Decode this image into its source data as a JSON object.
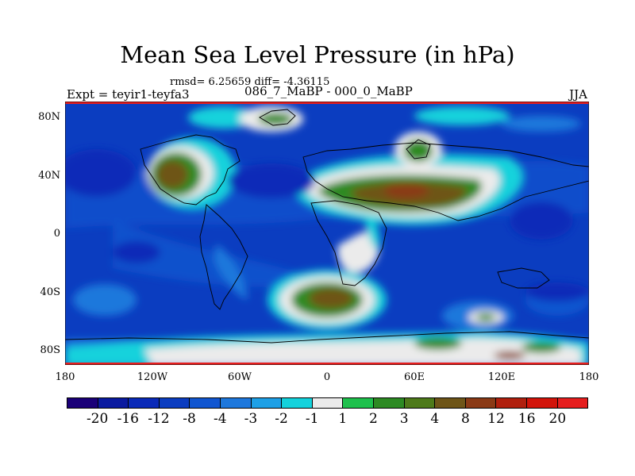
{
  "title": "Mean Sea Level Pressure (in hPa)",
  "stats": "rmsd= 6.25659 diff= -4.36115",
  "experiment": "Expt = teyir1-teyfa3",
  "case_diff": "086_7_MaBP - 000_0_MaBP",
  "season": "JJA",
  "y_axis": {
    "labels": [
      "80N",
      "40N",
      "0",
      "40S",
      "80S"
    ],
    "values": [
      80,
      40,
      0,
      -40,
      -80
    ]
  },
  "x_axis": {
    "labels": [
      "180",
      "120W",
      "60W",
      "0",
      "60E",
      "120E",
      "180"
    ],
    "values": [
      -180,
      -120,
      -60,
      0,
      60,
      120,
      180
    ]
  },
  "colorbar": {
    "labels": [
      "-20",
      "-16",
      "-12",
      "-8",
      "-4",
      "-3",
      "-2",
      "-1",
      "1",
      "2",
      "3",
      "4",
      "8",
      "12",
      "16",
      "20"
    ],
    "colors": [
      "#1a0078",
      "#0a1aa0",
      "#0a2ab8",
      "#0b3dc0",
      "#1156d0",
      "#1e78dc",
      "#1ea0e6",
      "#14d2dc",
      "#ebebeb",
      "#1ec04c",
      "#2d8a23",
      "#4e7a1a",
      "#6e5518",
      "#8a3a16",
      "#b0200e",
      "#d2140a",
      "#e61e1e"
    ]
  }
}
